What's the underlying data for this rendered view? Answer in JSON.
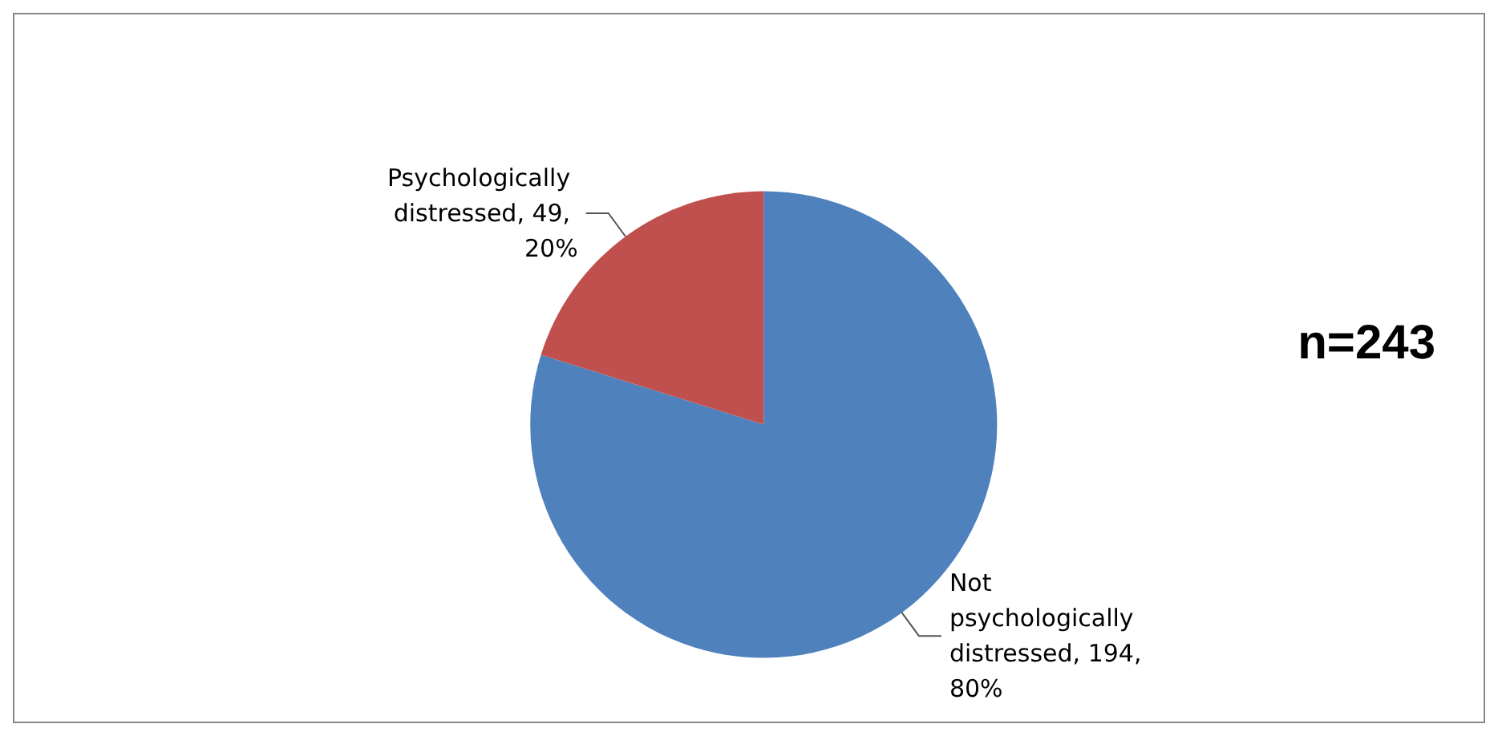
{
  "chart_data": {
    "type": "pie",
    "categories": [
      "Not psychologically distressed",
      "Psychologically distressed"
    ],
    "values": [
      194,
      49
    ],
    "value_labels": [
      ", 194, 80%",
      ", 49, 20%"
    ],
    "colors": [
      "#4f81bd",
      "#c0504d"
    ],
    "annotations": [
      "n=243"
    ],
    "legend": false
  }
}
